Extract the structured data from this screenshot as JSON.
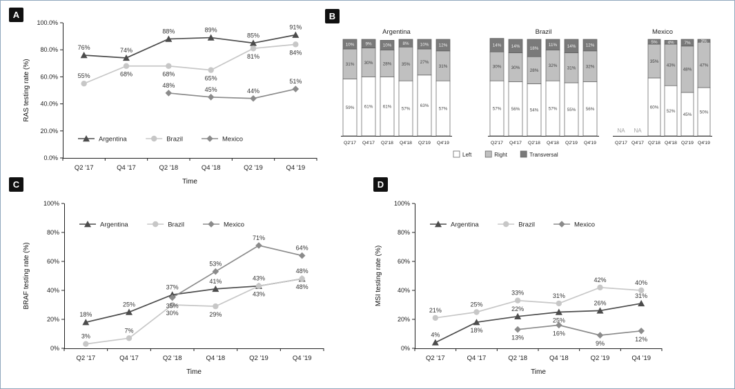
{
  "panels": [
    {
      "label": "A"
    },
    {
      "label": "B"
    },
    {
      "label": "C"
    },
    {
      "label": "D"
    }
  ],
  "colors": {
    "argentina": "#4c4c4c",
    "brazil": "#c7c7c7",
    "mexico": "#8b8b8b",
    "bar_left": "#ffffff",
    "bar_right": "#c0c0c0",
    "bar_transversal": "#7a7a7a",
    "axis": "#1f1f1f",
    "na_text": "#a0a0a0"
  },
  "chart_data": [
    {
      "id": "A",
      "type": "line",
      "title": "",
      "xlabel": "Time",
      "ylabel": "RAS testing rate (%)",
      "ylim": [
        0,
        100
      ],
      "yticks": [
        0,
        20,
        40,
        60,
        80,
        100
      ],
      "ytick_labels": [
        "0.0%",
        "20.0%",
        "40.0%",
        "60.0%",
        "80.0%",
        "100.0%"
      ],
      "categories": [
        "Q2 '17",
        "Q4 '17",
        "Q2 '18",
        "Q4 '18",
        "Q2 '19",
        "Q4 '19"
      ],
      "grid": false,
      "legend_position": "bottom-inside",
      "series": [
        {
          "name": "Argentina",
          "marker": "triangle",
          "values": [
            76,
            74,
            88,
            89,
            85,
            91
          ]
        },
        {
          "name": "Brazil",
          "marker": "circle",
          "values": [
            55,
            68,
            68,
            65,
            81,
            84
          ]
        },
        {
          "name": "Mexico",
          "marker": "diamond",
          "values": [
            null,
            null,
            48,
            45,
            44,
            51
          ]
        }
      ]
    },
    {
      "id": "B",
      "type": "stacked-bar",
      "title": "",
      "na_label": "NA",
      "ylim": [
        0,
        100
      ],
      "categories": [
        "Q2'17",
        "Q4'17",
        "Q2'18",
        "Q4'18",
        "Q2'19",
        "Q4'19"
      ],
      "legend": [
        "Left",
        "Right",
        "Transversal"
      ],
      "legend_position": "bottom",
      "segment_order": [
        "Left",
        "Right",
        "Transversal"
      ],
      "groups": [
        {
          "name": "Argentina",
          "values": [
            [
              59,
              31,
              10
            ],
            [
              61,
              30,
              9
            ],
            [
              61,
              28,
              10
            ],
            [
              57,
              35,
              8
            ],
            [
              63,
              27,
              10
            ],
            [
              57,
              31,
              12
            ]
          ]
        },
        {
          "name": "Brazil",
          "values": [
            [
              57,
              30,
              14
            ],
            [
              56,
              30,
              14
            ],
            [
              54,
              28,
              18
            ],
            [
              57,
              32,
              11
            ],
            [
              55,
              31,
              14
            ],
            [
              56,
              32,
              12
            ]
          ]
        },
        {
          "name": "Mexico",
          "values": [
            null,
            null,
            [
              60,
              35,
              5
            ],
            [
              52,
              43,
              4
            ],
            [
              45,
              48,
              7
            ],
            [
              50,
              47,
              3
            ]
          ]
        }
      ]
    },
    {
      "id": "C",
      "type": "line",
      "title": "",
      "xlabel": "Time",
      "ylabel": "BRAF testing rate (%)",
      "ylim": [
        0,
        100
      ],
      "yticks": [
        0,
        20,
        40,
        60,
        80,
        100
      ],
      "ytick_labels": [
        "0%",
        "20%",
        "40%",
        "60%",
        "80%",
        "100%"
      ],
      "categories": [
        "Q2 '17",
        "Q4 '17",
        "Q2 '18",
        "Q4 '18",
        "Q2 '19",
        "Q4 '19"
      ],
      "grid": false,
      "legend_position": "top-inside",
      "series": [
        {
          "name": "Argentina",
          "marker": "triangle",
          "values": [
            18,
            25,
            37,
            41,
            43,
            48
          ]
        },
        {
          "name": "Brazil",
          "marker": "circle",
          "values": [
            3,
            7,
            30,
            29,
            43,
            48
          ]
        },
        {
          "name": "Mexico",
          "marker": "diamond",
          "values": [
            null,
            null,
            35,
            53,
            71,
            64
          ]
        }
      ]
    },
    {
      "id": "D",
      "type": "line",
      "title": "",
      "xlabel": "Time",
      "ylabel": "MSI testing rate (%)",
      "ylim": [
        0,
        100
      ],
      "yticks": [
        0,
        20,
        40,
        60,
        80,
        100
      ],
      "ytick_labels": [
        "0%",
        "20%",
        "40%",
        "60%",
        "80%",
        "100%"
      ],
      "categories": [
        "Q2 '17",
        "Q4 '17",
        "Q2 '18",
        "Q4 '18",
        "Q2 '19",
        "Q4 '19"
      ],
      "grid": false,
      "legend_position": "top-inside",
      "series": [
        {
          "name": "Argentina",
          "marker": "triangle",
          "values": [
            4,
            18,
            22,
            25,
            26,
            31
          ]
        },
        {
          "name": "Brazil",
          "marker": "circle",
          "values": [
            21,
            25,
            33,
            31,
            42,
            40
          ]
        },
        {
          "name": "Mexico",
          "marker": "diamond",
          "values": [
            null,
            null,
            13,
            16,
            9,
            12
          ]
        }
      ]
    }
  ]
}
